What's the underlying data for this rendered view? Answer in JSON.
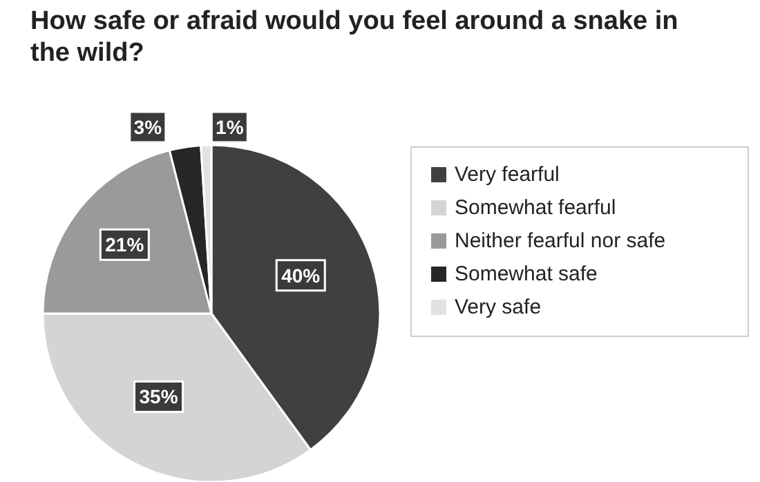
{
  "chart_data": {
    "type": "pie",
    "title": "How safe or afraid would you feel around a snake in the wild?",
    "categories": [
      "Very fearful",
      "Somewhat fearful",
      "Neither fearful nor safe",
      "Somewhat safe",
      "Very safe"
    ],
    "values": [
      40,
      35,
      21,
      3,
      1
    ],
    "colors": [
      "#404040",
      "#d4d4d4",
      "#9a9a9a",
      "#262626",
      "#e2e2e2"
    ],
    "value_labels": [
      "40%",
      "35%",
      "21%",
      "3%",
      "1%"
    ],
    "legend": "right"
  }
}
